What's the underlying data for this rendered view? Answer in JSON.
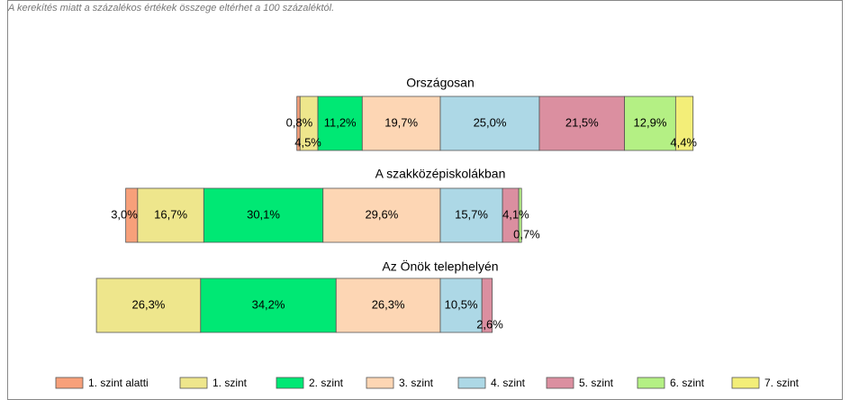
{
  "chart_data": {
    "type": "bar",
    "orientation": "horizontal",
    "stacked": true,
    "diverging": true,
    "note": "A kerekítés miatt a százalékos értékek összege eltérhet a 100 százaléktól.",
    "categories": [
      "Országosan",
      "A szakközépiskolákban",
      "Az Önök telephelyén"
    ],
    "series": [
      {
        "name": "1. szint alatti",
        "color": "#f7a07a",
        "values": [
          0.8,
          3.0,
          null
        ],
        "value_labels": [
          "0,8%",
          "3,0%",
          null
        ]
      },
      {
        "name": "1. szint",
        "color": "#eee68c",
        "values": [
          4.5,
          16.7,
          26.3
        ],
        "value_labels": [
          "4,5%",
          "16,7%",
          "26,3%"
        ]
      },
      {
        "name": "2. szint",
        "color": "#00e874",
        "values": [
          11.2,
          30.1,
          34.2
        ],
        "value_labels": [
          "11,2%",
          "30,1%",
          "34,2%"
        ]
      },
      {
        "name": "3. szint",
        "color": "#fdd6b4",
        "values": [
          19.7,
          29.6,
          26.3
        ],
        "value_labels": [
          "19,7%",
          "29,6%",
          "26,3%"
        ]
      },
      {
        "name": "4. szint",
        "color": "#add8e6",
        "values": [
          25.0,
          15.7,
          10.5
        ],
        "value_labels": [
          "25,0%",
          "15,7%",
          "10,5%"
        ]
      },
      {
        "name": "5. szint",
        "color": "#db8fa0",
        "values": [
          21.5,
          4.1,
          2.6
        ],
        "value_labels": [
          "21,5%",
          "4,1%",
          "2,6%"
        ]
      },
      {
        "name": "6. szint",
        "color": "#b4f084",
        "values": [
          12.9,
          0.7,
          null
        ],
        "value_labels": [
          "12,9%",
          "0,7%",
          null
        ]
      },
      {
        "name": "7. szint",
        "color": "#f3ee78",
        "values": [
          4.4,
          null,
          null
        ],
        "value_labels": [
          "4,4%",
          null,
          null
        ]
      }
    ]
  }
}
